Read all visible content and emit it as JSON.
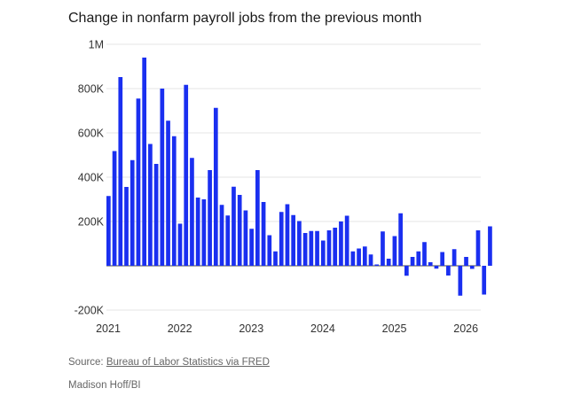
{
  "chart_data": {
    "type": "bar",
    "title": "Change in nonfarm payroll jobs from the previous month",
    "xlabel": "",
    "ylabel": "",
    "ylim": [
      -200000,
      1000000
    ],
    "yticks": [
      -200000,
      0,
      200000,
      400000,
      600000,
      800000,
      1000000
    ],
    "ytick_labels": [
      "-200K",
      "",
      "200K",
      "400K",
      "600K",
      "800K",
      "1M"
    ],
    "x_start": "2021-01",
    "xtick_labels": [
      "2021",
      "2022",
      "2023",
      "2024",
      "2025",
      "2026"
    ],
    "bar_color": "#1a2ff0",
    "grid": true,
    "series": [
      {
        "name": "Monthly change in nonfarm payroll jobs",
        "values": [
          315000,
          518000,
          852000,
          356000,
          477000,
          755000,
          940000,
          550000,
          460000,
          800000,
          655000,
          585000,
          190000,
          817000,
          487000,
          308000,
          300000,
          432000,
          713000,
          275000,
          227000,
          357000,
          320000,
          250000,
          167000,
          432000,
          288000,
          138000,
          65000,
          243000,
          278000,
          229000,
          202000,
          148000,
          157000,
          157000,
          114000,
          160000,
          172000,
          200000,
          226000,
          65000,
          78000,
          87000,
          51000,
          6000,
          155000,
          32000,
          134000,
          237000,
          -45000,
          40000,
          65000,
          107000,
          16000,
          -13000,
          62000,
          -44000,
          75000,
          -135000,
          40000,
          -14000,
          160000,
          -130000,
          178000
        ]
      }
    ]
  },
  "footer": {
    "source_label": "Source: ",
    "source_link": "Bureau of Labor Statistics via FRED",
    "credit": "Madison Hoff/BI"
  }
}
